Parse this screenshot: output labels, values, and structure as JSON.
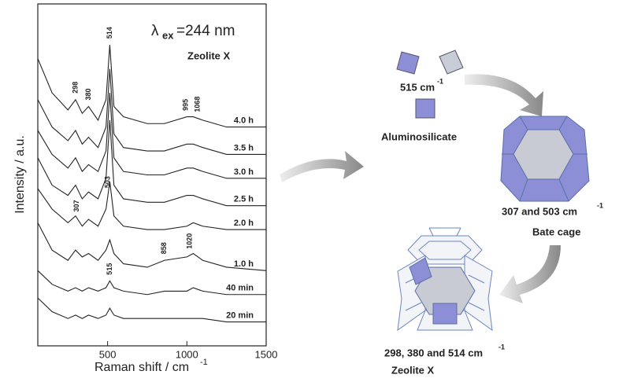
{
  "chart_data": {
    "type": "line",
    "excitation": {
      "symbol": "λ",
      "subscript": "ex",
      "text": "=244 nm"
    },
    "sample": "Zeolite X",
    "x_label": {
      "text": "Raman shift / cm",
      "superscript": "-1"
    },
    "y_label": "Intensity / a.u.",
    "x": [
      60,
      150,
      250,
      298,
      340,
      380,
      440,
      490,
      514,
      540,
      600,
      750,
      858,
      1000,
      1040,
      1100,
      1250,
      1500
    ],
    "xlim": [
      60,
      1500
    ],
    "xticks": [
      500,
      1000,
      1500
    ],
    "ylim": [
      0,
      100
    ],
    "color": "#222222",
    "series": [
      {
        "name": "4.0 h",
        "values": [
          84,
          74,
          69,
          72,
          68,
          70,
          66,
          72,
          88,
          70,
          67,
          65,
          65,
          67,
          67,
          66,
          64,
          64
        ],
        "peaks": [
          298,
          380,
          514,
          995,
          1068
        ]
      },
      {
        "name": "3.5 h",
        "values": [
          72,
          64,
          60,
          63,
          59,
          61,
          58,
          64,
          81,
          62,
          58,
          57,
          57,
          59,
          59,
          58,
          56,
          56
        ]
      },
      {
        "name": "3.0 h",
        "values": [
          63,
          56,
          52,
          55,
          51,
          53,
          51,
          57,
          74,
          55,
          51,
          50,
          50,
          52,
          52,
          51,
          49,
          49
        ]
      },
      {
        "name": "2.5 h",
        "values": [
          55,
          47,
          44,
          47,
          43,
          45,
          43,
          49,
          66,
          47,
          43,
          42,
          42,
          44,
          44,
          43,
          41,
          41
        ]
      },
      {
        "name": "2.0 h",
        "values": [
          46,
          40,
          36,
          38,
          35,
          37,
          35,
          40,
          48,
          38,
          35,
          34,
          34,
          35,
          36,
          35,
          34,
          34
        ],
        "peaks": [
          307,
          503
        ]
      },
      {
        "name": "1.0 h",
        "values": [
          36,
          28,
          25,
          28,
          26,
          27,
          25,
          28,
          31,
          27,
          24,
          23,
          25,
          26,
          27,
          25,
          23,
          22
        ],
        "peaks": [
          858,
          1020
        ]
      },
      {
        "name": "40 min",
        "values": [
          22,
          18,
          16,
          17,
          16,
          17,
          16,
          17,
          19,
          17,
          16,
          15,
          16,
          16,
          17,
          16,
          15,
          15
        ],
        "peaks": [
          515
        ]
      },
      {
        "name": "20 min",
        "values": [
          14,
          10,
          8,
          9,
          8,
          9,
          8,
          9,
          11,
          9,
          8,
          8,
          8,
          8,
          8,
          8,
          7,
          7
        ]
      }
    ]
  },
  "diagram": {
    "aluminosilicate_band": {
      "text": "515 cm",
      "superscript": "-1"
    },
    "aluminosilicate": "Aluminosilicate",
    "cage_bands": {
      "text": "307 and 503 cm",
      "superscript": "-1"
    },
    "cage": "Bate cage",
    "zeolite_bands": {
      "text": "298, 380 and 514 cm",
      "superscript": "-1"
    },
    "zeolite": "Zeolite X"
  }
}
